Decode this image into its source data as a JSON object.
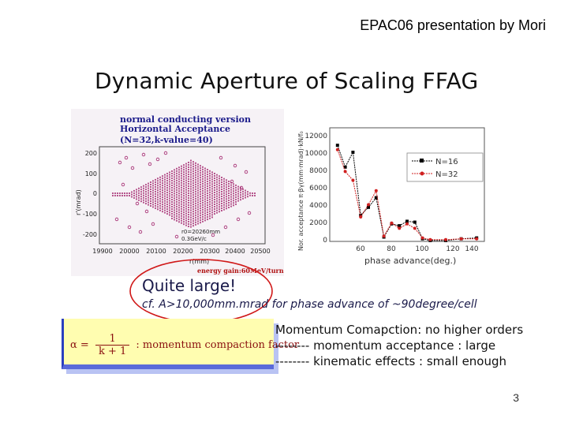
{
  "header": {
    "text": "EPAC06 presentation by Mori"
  },
  "slide": {
    "title": "Dynamic Aperture of Scaling FFAG",
    "page_number": "3"
  },
  "left_plot": {
    "caption_lines": [
      "normal conducting version",
      "Horizontal Acceptance",
      "(N=32,k-value=40)"
    ],
    "ylabel": "r'(mrad)",
    "xlabel": "r(mm)",
    "y_ticks": [
      "200",
      "100",
      "0",
      "-100",
      "-200"
    ],
    "x_ticks": [
      "19900",
      "20000",
      "20100",
      "20200",
      "20300",
      "20400",
      "20500"
    ],
    "note_lines": [
      "r0=20260mm",
      "0.3GeV/c"
    ],
    "energy_gain": "energy gain:60MeV/turn"
  },
  "right_plot": {
    "ylabel": "Nor. acceptance π·βγ(mm·mrad)·kN/f₀",
    "xlabel": "phase advance(deg.)",
    "y_ticks": [
      "12000",
      "10000",
      "8000",
      "6000",
      "4000",
      "2000",
      "0"
    ],
    "x_ticks": [
      "60",
      "80",
      "100",
      "120",
      "140"
    ],
    "legend": [
      "N=16",
      "N=32"
    ]
  },
  "chart_data": {
    "type": "line",
    "x": [
      50,
      55,
      60,
      65,
      70,
      75,
      80,
      85,
      90,
      95,
      100,
      105,
      110,
      120,
      130,
      140
    ],
    "xlabel": "phase advance(deg.)",
    "ylabel": "Nor. acceptance π·βγ(mm·mrad)·kN/f₀",
    "xlim": [
      45,
      145
    ],
    "ylim": [
      0,
      13000
    ],
    "series": [
      {
        "name": "N=16",
        "values": [
          11000,
          8500,
          10200,
          3000,
          3900,
          5000,
          500,
          2000,
          1800,
          2300,
          2200,
          300,
          100,
          100,
          300,
          400
        ]
      },
      {
        "name": "N=32",
        "values": [
          10500,
          8000,
          7000,
          2800,
          4200,
          5800,
          600,
          2100,
          1500,
          2000,
          1500,
          400,
          200,
          200,
          300,
          300
        ]
      }
    ]
  },
  "annotation": {
    "headline": "Quite large!",
    "detail": "cf. A>10,000mm.mrad for phase advance of ~90degree/cell"
  },
  "alpha_box": {
    "lhs": "α =",
    "num": "1",
    "den": "k + 1",
    "desc": ": momentum compaction factor"
  },
  "momentum": {
    "lines": [
      "Momentum Comapction: no higher orders",
      "-------- momentum acceptance : large",
      "-------- kinematic effects : small enough"
    ]
  },
  "colors": {
    "scatter": "#a0206a",
    "caption": "#1a1a8a",
    "energy": "#b01010",
    "ellipse": "#d01818",
    "n16": "#000000",
    "n32": "#d02020"
  }
}
